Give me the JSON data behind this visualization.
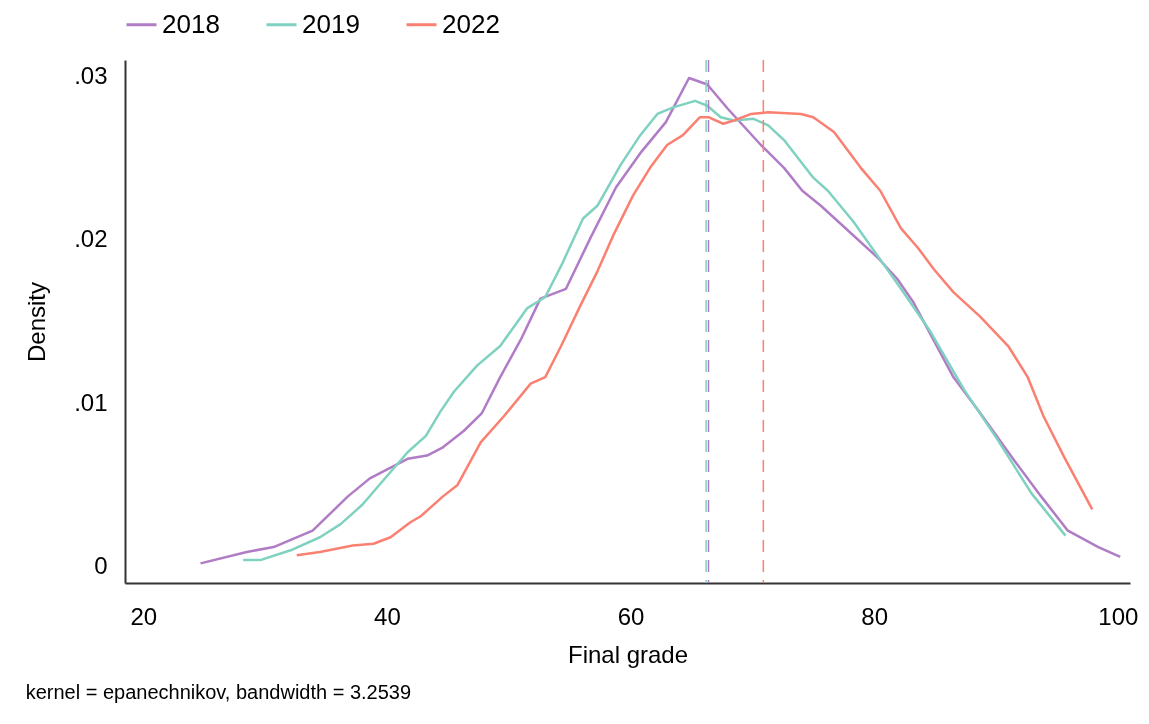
{
  "chart_data": {
    "type": "line",
    "xlabel": "Final grade",
    "ylabel": "Density",
    "annotations": [
      "kernel = epanechnikov, bandwidth = 3.2539"
    ],
    "xlim": [
      18.5,
      101
    ],
    "ylim": [
      -0.001,
      0.031
    ],
    "xticks": [
      20,
      40,
      60,
      80,
      100
    ],
    "yticks": [
      {
        "value": 0,
        "label": "0"
      },
      {
        "value": 0.01,
        "label": ".01"
      },
      {
        "value": 0.02,
        "label": ".02"
      },
      {
        "value": 0.03,
        "label": ".03"
      }
    ],
    "grid": false,
    "legend": "top",
    "marker": "none",
    "line_style": "solid",
    "series": [
      {
        "name": "2018",
        "color": "#b07cc6",
        "x": [
          24.7,
          28.5,
          30.7,
          33.9,
          36.8,
          38.6,
          41.7,
          43.3,
          44.6,
          46.3,
          47.8,
          49.3,
          51.0,
          52.6,
          54.7,
          56.7,
          58.8,
          60.8,
          62.9,
          64.8,
          66.3,
          68.0,
          70.7,
          72.6,
          74.1,
          75.6,
          80.3,
          81.9,
          83.2,
          86.5,
          88.7,
          91.5,
          93.7,
          95.9,
          98.4,
          100.2
        ],
        "values": [
          0.0002,
          0.0009,
          0.0012,
          0.0022,
          0.0043,
          0.0054,
          0.0066,
          0.0068,
          0.0073,
          0.0083,
          0.0094,
          0.0116,
          0.0139,
          0.0164,
          0.017,
          0.0201,
          0.0232,
          0.0253,
          0.0272,
          0.0299,
          0.0295,
          0.028,
          0.0258,
          0.0244,
          0.023,
          0.0221,
          0.0189,
          0.0176,
          0.0162,
          0.0116,
          0.0094,
          0.0065,
          0.0043,
          0.0022,
          0.0012,
          0.0006
        ]
      },
      {
        "name": "2019",
        "color": "#7fd1c0",
        "x": [
          28.2,
          29.6,
          32.1,
          34.5,
          36.2,
          38.0,
          39.5,
          41.7,
          43.2,
          44.4,
          45.5,
          47.4,
          49.3,
          51.5,
          53.0,
          54.3,
          56.1,
          57.3,
          59.2,
          60.8,
          62.2,
          63.5,
          65.3,
          66.3,
          67.4,
          68.5,
          70.1,
          71.3,
          72.6,
          75.0,
          76.2,
          78.3,
          80.3,
          82.2,
          84.6,
          87.4,
          90.1,
          92.9,
          95.7
        ],
        "values": [
          0.0004,
          0.0004,
          0.001,
          0.0018,
          0.0026,
          0.0038,
          0.0051,
          0.007,
          0.008,
          0.0095,
          0.0107,
          0.0123,
          0.0135,
          0.0158,
          0.0165,
          0.0184,
          0.0213,
          0.0221,
          0.0246,
          0.0264,
          0.0277,
          0.0281,
          0.0285,
          0.0282,
          0.0275,
          0.0273,
          0.0274,
          0.027,
          0.0261,
          0.0238,
          0.023,
          0.0211,
          0.019,
          0.017,
          0.0144,
          0.0108,
          0.0078,
          0.0045,
          0.0019
        ]
      },
      {
        "name": "2022",
        "color": "#fa8072",
        "x": [
          32.6,
          34.5,
          37.2,
          38.9,
          40.3,
          41.9,
          42.8,
          44.6,
          45.8,
          47.7,
          49.6,
          51.8,
          53.0,
          54.3,
          55.9,
          57.3,
          58.6,
          60.2,
          61.6,
          63.0,
          64.3,
          65.7,
          66.4,
          67.6,
          68.5,
          69.9,
          71.3,
          74.0,
          75.0,
          76.7,
          78.9,
          80.5,
          82.2,
          83.6,
          84.9,
          86.5,
          88.7,
          91.0,
          92.6,
          93.9,
          95.6,
          97.9
        ],
        "values": [
          0.0007,
          0.0009,
          0.0013,
          0.0014,
          0.0018,
          0.0027,
          0.0031,
          0.0043,
          0.005,
          0.0076,
          0.0092,
          0.0112,
          0.0116,
          0.0135,
          0.016,
          0.0181,
          0.0203,
          0.0227,
          0.0244,
          0.0258,
          0.0264,
          0.0275,
          0.0275,
          0.0271,
          0.0273,
          0.0277,
          0.0278,
          0.0277,
          0.0275,
          0.0266,
          0.0244,
          0.023,
          0.0207,
          0.0195,
          0.0182,
          0.0168,
          0.0153,
          0.0135,
          0.0116,
          0.0092,
          0.0067,
          0.0035
        ]
      }
    ],
    "ref_lines": [
      {
        "axis": "x",
        "value": 66.2,
        "color": "#7fd1c0",
        "line_style": "dashed"
      },
      {
        "axis": "x",
        "value": 66.4,
        "color": "#b07cc6",
        "line_style": "dashed"
      },
      {
        "axis": "x",
        "value": 70.9,
        "color": "#fa8072",
        "line_style": "dashed"
      }
    ]
  }
}
